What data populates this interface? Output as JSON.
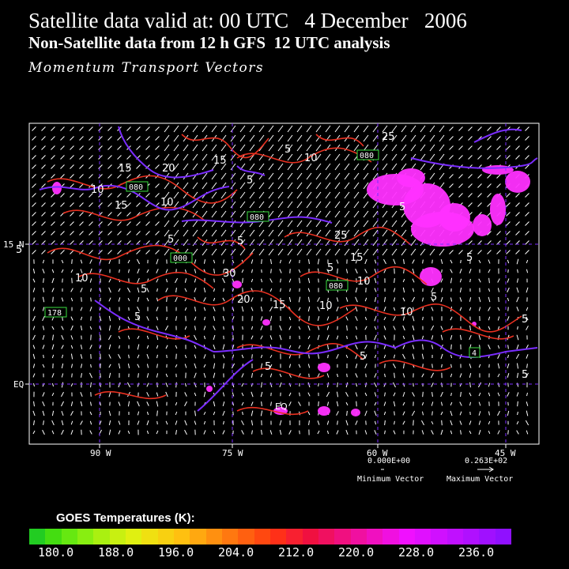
{
  "header": {
    "line1": "Satellite data valid at: 00 UTC   4 December   2006",
    "line2": "Non-Satellite data from 12 h GFS  12 UTC analysis",
    "line3": "Momentum Transport Vectors"
  },
  "map": {
    "lon_labels": [
      "90 W",
      "75 W",
      "60 W",
      "45 W"
    ],
    "lat_labels": [
      "15 N",
      "EQ"
    ],
    "contour_labels": [
      "5",
      "10",
      "15",
      "20",
      "25",
      "30"
    ],
    "boxed_values": [
      "080",
      "080",
      "080",
      "000",
      "080",
      "178",
      "4"
    ],
    "eq_inner_label": "EQ",
    "colors": {
      "contour": "#e83020",
      "coast": "#7a2cff",
      "convection": "#ff30ff",
      "vector": "#ffffff",
      "boxes": "#3ae040"
    }
  },
  "reference_vectors": {
    "min_value": "0.000E+00",
    "min_label": "Minimum Vector",
    "max_value": "0.263E+02",
    "max_label": "Maximum Vector"
  },
  "colorbar": {
    "title": "GOES Temperatures (K):",
    "labels": [
      "180.0",
      "188.0",
      "196.0",
      "204.0",
      "212.0",
      "220.0",
      "228.0",
      "236.0"
    ],
    "colors": [
      "#22cc22",
      "#44dd11",
      "#66e811",
      "#88ee11",
      "#aaf011",
      "#c8f011",
      "#e0f011",
      "#f0e011",
      "#f8d011",
      "#ffc010",
      "#ffa810",
      "#ff9010",
      "#ff7810",
      "#ff6010",
      "#ff4810",
      "#ff3018",
      "#f82030",
      "#f01040",
      "#f01060",
      "#f01080",
      "#f010a0",
      "#f010c0",
      "#f010e0",
      "#f010ff",
      "#e010ff",
      "#d010ff",
      "#c010ff",
      "#b010ff",
      "#a010ff",
      "#9010ff"
    ]
  }
}
